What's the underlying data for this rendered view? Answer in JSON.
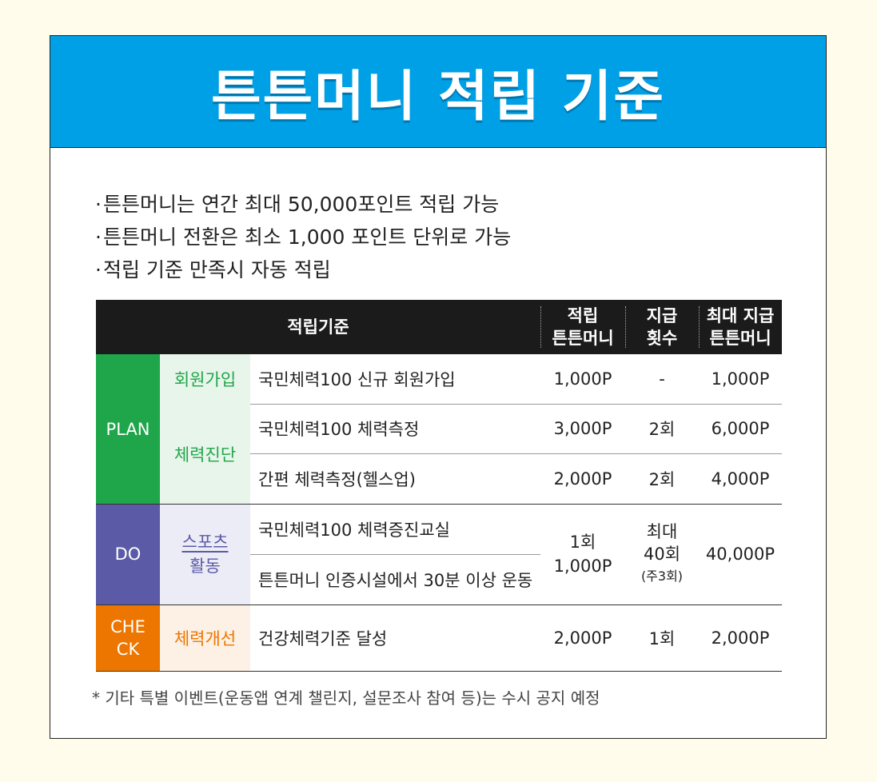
{
  "title": "튼튼머니 적립 기준",
  "bullets": [
    "튼튼머니는 연간 최대 50,000포인트 적립 가능",
    "튼튼머니 전환은 최소 1,000 포인트 단위로 가능",
    "적립 기준 만족시 자동 적립"
  ],
  "table": {
    "headers": {
      "criteria": "적립기준",
      "points_line1": "적립",
      "points_line2": "튼튼머니",
      "count_line1": "지급",
      "count_line2": "횟수",
      "max_line1": "최대 지급",
      "max_line2": "튼튼머니"
    },
    "stages": {
      "plan": "PLAN",
      "do": "DO",
      "check_line1": "CHE",
      "check_line2": "CK"
    },
    "categories": {
      "signup": "회원가입",
      "diagnosis": "체력진단",
      "sports_line1": "스포츠",
      "sports_line2": "활동",
      "improve": "체력개선"
    },
    "rows": {
      "r1": {
        "item": "국민체력100 신규 회원가입",
        "points": "1,000P",
        "count": "-",
        "max": "1,000P"
      },
      "r2": {
        "item": "국민체력100 체력측정",
        "points": "3,000P",
        "count": "2회",
        "max": "6,000P"
      },
      "r3": {
        "item": "간편 체력측정(헬스업)",
        "points": "2,000P",
        "count": "2회",
        "max": "4,000P"
      },
      "r4": {
        "item": "국민체력100 체력증진교실"
      },
      "r5": {
        "item": "튼튼머니 인증시설에서 30분 이상 운동"
      },
      "do_points_line1": "1회",
      "do_points_line2": "1,000P",
      "do_count_line1": "최대",
      "do_count_line2": "40회",
      "do_count_line3": "(주3회)",
      "do_max": "40,000P",
      "r6": {
        "item": "건강체력기준 달성",
        "points": "2,000P",
        "count": "1회",
        "max": "2,000P"
      }
    }
  },
  "note": "* 기타 특별 이벤트(운동앱 연계 챌린지, 설문조사 참여 등)는 수시 공지 예정",
  "colors": {
    "banner": "#00a0e6",
    "plan": "#1fa64a",
    "plan_light": "#e8f5ea",
    "do": "#5b5aa6",
    "do_light": "#ececf7",
    "check": "#ec7600",
    "check_light": "#fdf0e4",
    "header": "#1b1b1b"
  }
}
